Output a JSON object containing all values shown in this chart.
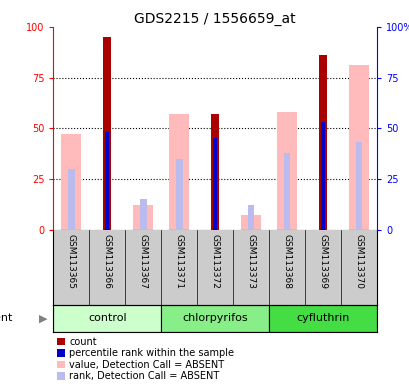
{
  "title": "GDS2215 / 1556659_at",
  "samples": [
    "GSM113365",
    "GSM113366",
    "GSM113367",
    "GSM113371",
    "GSM113372",
    "GSM113373",
    "GSM113368",
    "GSM113369",
    "GSM113370"
  ],
  "group_order": [
    "control",
    "chlorpyrifos",
    "cyfluthrin"
  ],
  "group_labels": {
    "control": "control",
    "chlorpyrifos": "chlorpyrifos",
    "cyfluthrin": "cyfluthrin"
  },
  "group_xranges": {
    "control": [
      0,
      3
    ],
    "chlorpyrifos": [
      3,
      6
    ],
    "cyfluthrin": [
      6,
      9
    ]
  },
  "group_colors": {
    "control": "#ccffcc",
    "chlorpyrifos": "#88ee88",
    "cyfluthrin": "#44dd44"
  },
  "count": [
    0,
    95,
    0,
    0,
    57,
    0,
    0,
    86,
    0
  ],
  "percentile_rank": [
    0,
    48,
    0,
    0,
    45,
    0,
    0,
    53,
    0
  ],
  "value_absent": [
    47,
    0,
    12,
    57,
    0,
    7,
    58,
    0,
    81
  ],
  "rank_absent": [
    30,
    0,
    15,
    35,
    0,
    12,
    38,
    0,
    43
  ],
  "ylim": [
    0,
    100
  ],
  "yticks": [
    0,
    25,
    50,
    75,
    100
  ],
  "count_color": "#aa0000",
  "percentile_color": "#0000cc",
  "value_absent_color": "#ffbbbb",
  "rank_absent_color": "#bbbbee",
  "bg_color": "#ffffff",
  "title_fontsize": 10,
  "tick_fontsize": 7,
  "label_fontsize": 6.5,
  "legend_fontsize": 7,
  "group_fontsize": 8
}
